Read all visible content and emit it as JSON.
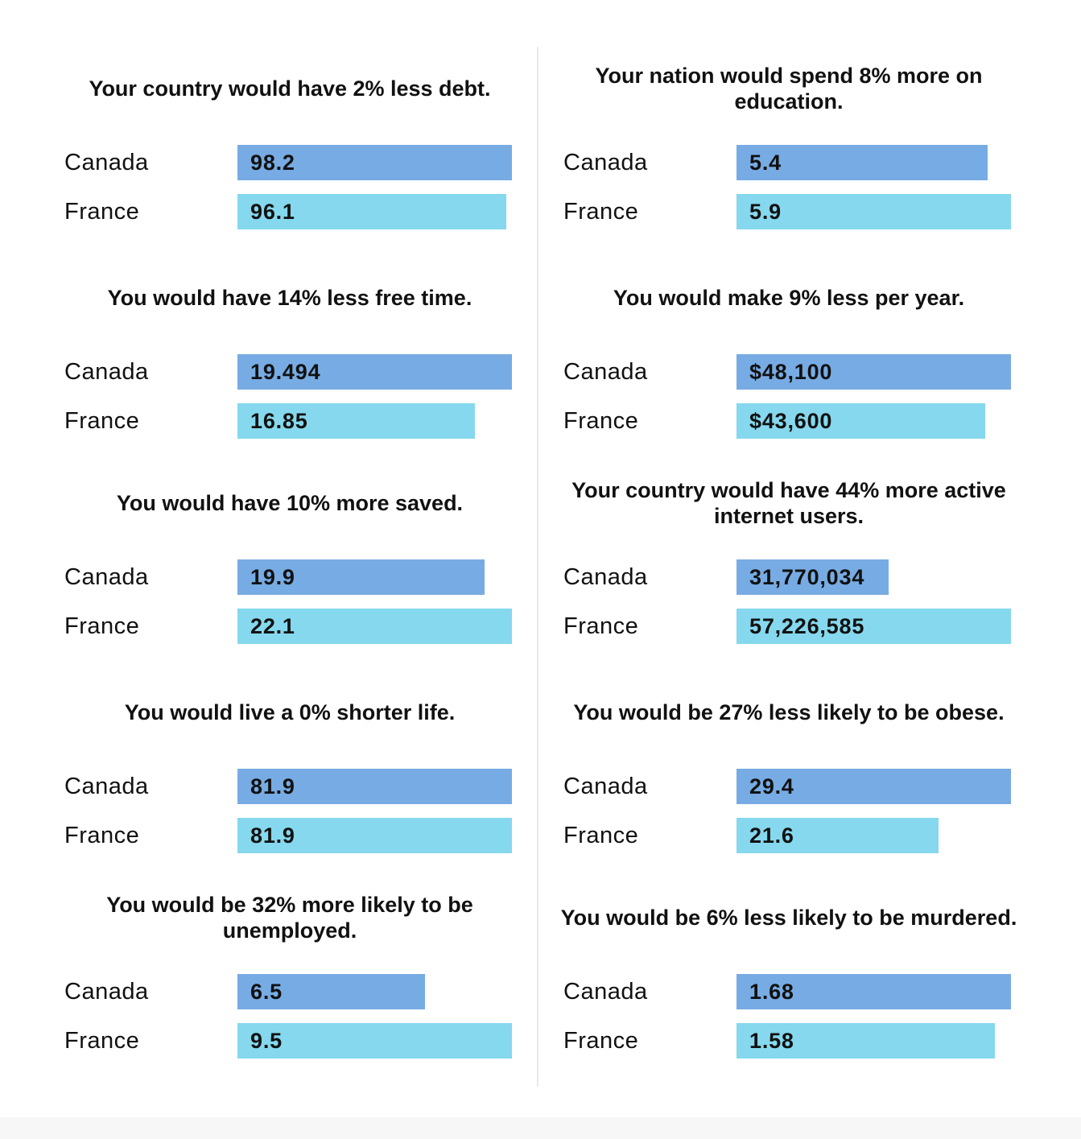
{
  "colors": {
    "series_a": "#77abe3",
    "series_b": "#85d8ed"
  },
  "chart_data": [
    {
      "type": "bar",
      "title": "Your country would have 2% less debt.",
      "categories": [
        "Canada",
        "France"
      ],
      "values": [
        98.2,
        96.1
      ],
      "labels": [
        "98.2",
        "96.1"
      ]
    },
    {
      "type": "bar",
      "title": "Your nation would spend 8% more on education.",
      "categories": [
        "Canada",
        "France"
      ],
      "values": [
        5.4,
        5.9
      ],
      "labels": [
        "5.4",
        "5.9"
      ]
    },
    {
      "type": "bar",
      "title": "You would have 14% less free time.",
      "categories": [
        "Canada",
        "France"
      ],
      "values": [
        19.494,
        16.85
      ],
      "labels": [
        "19.494",
        "16.85"
      ]
    },
    {
      "type": "bar",
      "title": "You would make 9% less per year.",
      "categories": [
        "Canada",
        "France"
      ],
      "values": [
        48100,
        43600
      ],
      "labels": [
        "$48,100",
        "$43,600"
      ]
    },
    {
      "type": "bar",
      "title": "You would have 10% more saved.",
      "categories": [
        "Canada",
        "France"
      ],
      "values": [
        19.9,
        22.1
      ],
      "labels": [
        "19.9",
        "22.1"
      ]
    },
    {
      "type": "bar",
      "title": "Your country would have 44% more active internet users.",
      "categories": [
        "Canada",
        "France"
      ],
      "values": [
        31770034,
        57226585
      ],
      "labels": [
        "31,770,034",
        "57,226,585"
      ]
    },
    {
      "type": "bar",
      "title": "You would live a 0% shorter life.",
      "categories": [
        "Canada",
        "France"
      ],
      "values": [
        81.9,
        81.9
      ],
      "labels": [
        "81.9",
        "81.9"
      ]
    },
    {
      "type": "bar",
      "title": "You would be 27% less likely to be obese.",
      "categories": [
        "Canada",
        "France"
      ],
      "values": [
        29.4,
        21.6
      ],
      "labels": [
        "29.4",
        "21.6"
      ]
    },
    {
      "type": "bar",
      "title": "You would be 32% more likely to be unemployed.",
      "categories": [
        "Canada",
        "France"
      ],
      "values": [
        6.5,
        9.5
      ],
      "labels": [
        "6.5",
        "9.5"
      ]
    },
    {
      "type": "bar",
      "title": "You would be 6% less likely to be murdered.",
      "categories": [
        "Canada",
        "France"
      ],
      "values": [
        1.68,
        1.58
      ],
      "labels": [
        "1.68",
        "1.58"
      ]
    }
  ]
}
